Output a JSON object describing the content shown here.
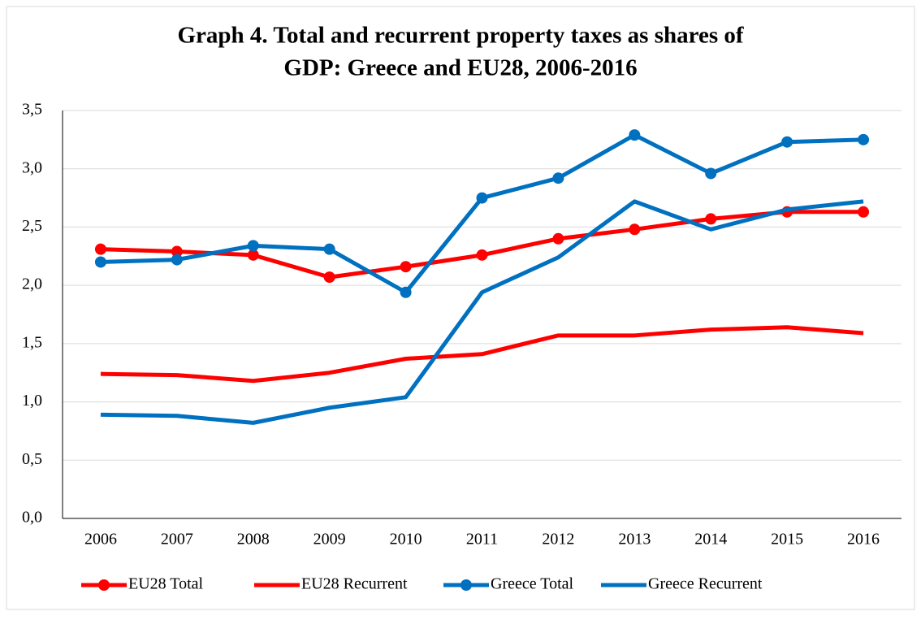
{
  "chart_data": {
    "type": "line",
    "title": [
      "Graph 4. Total and recurrent property taxes as shares of",
      "GDP: Greece and EU28, 2006-2016"
    ],
    "categories": [
      "2006",
      "2007",
      "2008",
      "2009",
      "2010",
      "2011",
      "2012",
      "2013",
      "2014",
      "2015",
      "2016"
    ],
    "series": [
      {
        "name": "EU28 Total",
        "color": "#ff0000",
        "markers": true,
        "values": [
          2.31,
          2.29,
          2.26,
          2.07,
          2.16,
          2.26,
          2.4,
          2.48,
          2.57,
          2.63,
          2.63
        ]
      },
      {
        "name": "EU28 Recurrent",
        "color": "#ff0000",
        "markers": false,
        "values": [
          1.24,
          1.23,
          1.18,
          1.25,
          1.37,
          1.41,
          1.57,
          1.57,
          1.62,
          1.64,
          1.59
        ]
      },
      {
        "name": "Greece Total",
        "color": "#0070c0",
        "markers": true,
        "values": [
          2.2,
          2.22,
          2.34,
          2.31,
          1.94,
          2.75,
          2.92,
          3.29,
          2.96,
          3.23,
          3.25
        ]
      },
      {
        "name": "Greece Recurrent",
        "color": "#0070c0",
        "markers": false,
        "values": [
          0.89,
          0.88,
          0.82,
          0.95,
          1.04,
          1.94,
          2.24,
          2.72,
          2.48,
          2.65,
          2.72
        ]
      }
    ],
    "ylim": [
      0,
      3.5
    ],
    "yticks": [
      {
        "value": 0,
        "label": "0,0"
      },
      {
        "value": 0.5,
        "label": "0,5"
      },
      {
        "value": 1,
        "label": "1,0"
      },
      {
        "value": 1.5,
        "label": "1,5"
      },
      {
        "value": 2,
        "label": "2,0"
      },
      {
        "value": 2.5,
        "label": "2,5"
      },
      {
        "value": 3,
        "label": "3,0"
      },
      {
        "value": 3.5,
        "label": "3,5"
      }
    ],
    "grid": true,
    "legend": "bottom"
  }
}
